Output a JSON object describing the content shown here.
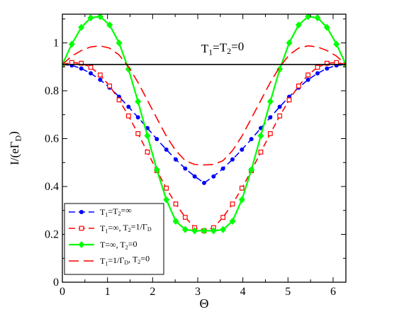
{
  "chart_data": {
    "type": "line",
    "xlabel": "Θ",
    "ylabel_parts": {
      "base": "I/(eΓ",
      "sub": "D",
      "tail": ")"
    },
    "xlim": [
      0,
      6.2832
    ],
    "ylim": [
      0,
      1.12
    ],
    "xticks": [
      0,
      1,
      2,
      3,
      4,
      5,
      6
    ],
    "xtick_labels": [
      "0",
      "1",
      "2",
      "3",
      "4",
      "5",
      "6"
    ],
    "yticks": [
      0,
      0.2,
      0.4,
      0.6,
      0.8,
      1.0
    ],
    "ytick_labels": [
      "0",
      "0.2",
      "0.4",
      "0.6",
      "0.8",
      "1"
    ],
    "grid": false,
    "legend_position": "bottom-left",
    "annotation": {
      "parts": [
        "T",
        "1",
        "=T",
        "2",
        "=0"
      ],
      "x": 3.55,
      "y": 0.96
    },
    "series": [
      {
        "name_parts": [
          "T",
          "1",
          "=T",
          "2",
          "=∞"
        ],
        "color": "#0000ff",
        "marker": "circle",
        "dash": "dash",
        "x": [
          0.0,
          0.209,
          0.419,
          0.628,
          0.838,
          1.047,
          1.257,
          1.466,
          1.676,
          1.885,
          2.094,
          2.304,
          2.513,
          2.723,
          2.932,
          3.142,
          3.351,
          3.56,
          3.77,
          3.979,
          4.189,
          4.398,
          4.608,
          4.817,
          5.027,
          5.236,
          5.445,
          5.655,
          5.864,
          6.074,
          6.283
        ],
        "y": [
          0.91,
          0.906,
          0.893,
          0.873,
          0.846,
          0.813,
          0.775,
          0.733,
          0.689,
          0.644,
          0.598,
          0.554,
          0.513,
          0.475,
          0.442,
          0.415,
          0.442,
          0.475,
          0.513,
          0.554,
          0.598,
          0.644,
          0.689,
          0.733,
          0.775,
          0.813,
          0.846,
          0.873,
          0.893,
          0.906,
          0.91
        ]
      },
      {
        "name_parts": [
          "T",
          "1",
          "=∞, T",
          "2",
          "=1/Γ",
          "D",
          ""
        ],
        "color": "#ff0000",
        "marker": "square-open",
        "dash": "dash",
        "x": [
          0.0,
          0.209,
          0.419,
          0.628,
          0.838,
          1.047,
          1.257,
          1.466,
          1.676,
          1.885,
          2.094,
          2.304,
          2.513,
          2.723,
          2.932,
          3.142,
          3.351,
          3.56,
          3.77,
          3.979,
          4.189,
          4.398,
          4.608,
          4.817,
          5.027,
          5.236,
          5.445,
          5.655,
          5.864,
          6.074,
          6.283
        ],
        "y": [
          0.91,
          0.918,
          0.915,
          0.898,
          0.866,
          0.82,
          0.762,
          0.695,
          0.621,
          0.544,
          0.466,
          0.393,
          0.327,
          0.271,
          0.228,
          0.215,
          0.228,
          0.271,
          0.327,
          0.393,
          0.466,
          0.544,
          0.621,
          0.695,
          0.762,
          0.82,
          0.866,
          0.898,
          0.915,
          0.918,
          0.91
        ]
      },
      {
        "name_parts": [
          "T=∞, T",
          "2",
          "=0"
        ],
        "color": "#00ff00",
        "marker": "diamond",
        "dash": "solid",
        "x": [
          0.0,
          0.209,
          0.419,
          0.628,
          0.838,
          1.047,
          1.257,
          1.466,
          1.676,
          1.885,
          2.094,
          2.304,
          2.513,
          2.723,
          2.932,
          3.142,
          3.351,
          3.56,
          3.77,
          3.979,
          4.189,
          4.398,
          4.608,
          4.817,
          5.027,
          5.236,
          5.445,
          5.655,
          5.864,
          6.074,
          6.283
        ],
        "y": [
          0.91,
          0.995,
          1.065,
          1.105,
          1.11,
          1.075,
          1.0,
          0.89,
          0.755,
          0.612,
          0.47,
          0.345,
          0.255,
          0.22,
          0.215,
          0.215,
          0.215,
          0.22,
          0.255,
          0.345,
          0.47,
          0.612,
          0.755,
          0.89,
          1.0,
          1.075,
          1.11,
          1.105,
          1.065,
          0.995,
          0.91
        ]
      },
      {
        "name_parts": [
          "T",
          "1",
          "=1/Γ",
          "D",
          ", T",
          "2",
          "=0"
        ],
        "color": "#ff0000",
        "marker": "none",
        "dash": "longdash",
        "x": [
          0.0,
          0.209,
          0.419,
          0.628,
          0.838,
          1.047,
          1.257,
          1.466,
          1.676,
          1.885,
          2.094,
          2.304,
          2.513,
          2.723,
          2.932,
          3.142,
          3.351,
          3.56,
          3.77,
          3.979,
          4.189,
          4.398,
          4.608,
          4.817,
          5.027,
          5.236,
          5.445,
          5.655,
          5.864,
          6.074,
          6.283
        ],
        "y": [
          0.91,
          0.945,
          0.968,
          0.983,
          0.988,
          0.978,
          0.95,
          0.9,
          0.835,
          0.76,
          0.685,
          0.61,
          0.55,
          0.508,
          0.492,
          0.49,
          0.492,
          0.508,
          0.55,
          0.61,
          0.685,
          0.76,
          0.835,
          0.9,
          0.95,
          0.978,
          0.988,
          0.983,
          0.968,
          0.945,
          0.91
        ]
      },
      {
        "name_parts": [],
        "color": "#000000",
        "marker": "none",
        "dash": "solid",
        "x": [
          0.0,
          6.283
        ],
        "y": [
          0.91,
          0.91
        ]
      }
    ]
  }
}
